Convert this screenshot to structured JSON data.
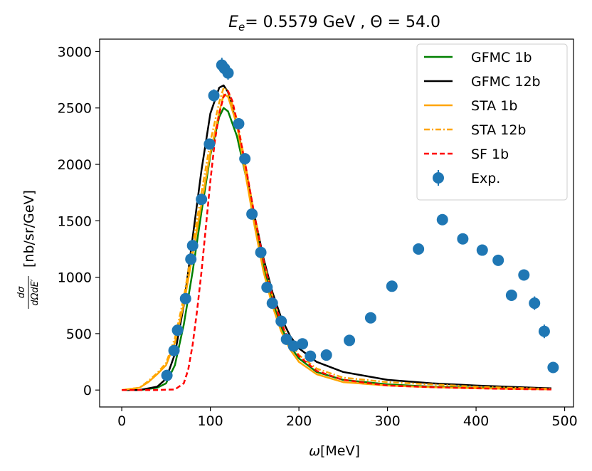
{
  "chart_data": {
    "type": "line",
    "title": {
      "prefix": "E",
      "subscript": "e",
      "rest": "= 0.5579 GeV , Θ = 54.0"
    },
    "xlabel": {
      "symbol": "ω",
      "unit": "[MeV]"
    },
    "ylabel": {
      "fraction_num": "dσ",
      "fraction_den": "dΩdE′",
      "unit": "[nb/sr/GeV]"
    },
    "xlim": [
      -25,
      510
    ],
    "ylim": [
      -150,
      3110
    ],
    "xticks": [
      0,
      100,
      200,
      300,
      400,
      500
    ],
    "yticks": [
      0,
      500,
      1000,
      1500,
      2000,
      2500,
      3000
    ],
    "legend_position": "top-right",
    "series": [
      {
        "name": "GFMC 1b",
        "color": "#008000",
        "dash": "solid",
        "x": [
          0,
          20,
          40,
          50,
          60,
          70,
          80,
          90,
          100,
          110,
          115,
          120,
          130,
          140,
          150,
          160,
          170,
          180,
          190,
          200,
          220,
          250,
          300,
          350,
          400,
          450,
          485
        ],
        "y": [
          0,
          0,
          20,
          60,
          220,
          580,
          1050,
          1580,
          2080,
          2420,
          2500,
          2470,
          2250,
          1900,
          1500,
          1110,
          800,
          560,
          390,
          280,
          160,
          90,
          50,
          30,
          20,
          12,
          8
        ]
      },
      {
        "name": "GFMC 12b",
        "color": "#000000",
        "dash": "solid",
        "x": [
          0,
          20,
          40,
          50,
          60,
          70,
          80,
          90,
          100,
          110,
          115,
          120,
          130,
          140,
          150,
          160,
          170,
          180,
          190,
          200,
          220,
          250,
          300,
          350,
          400,
          450,
          485
        ],
        "y": [
          0,
          0,
          30,
          100,
          320,
          750,
          1350,
          1950,
          2450,
          2680,
          2700,
          2640,
          2350,
          1950,
          1540,
          1170,
          870,
          640,
          480,
          370,
          250,
          160,
          90,
          60,
          40,
          25,
          15
        ]
      },
      {
        "name": "STA 1b",
        "color": "#FFA500",
        "dash": "solid",
        "x": [
          0,
          20,
          30,
          40,
          50,
          60,
          70,
          80,
          90,
          100,
          110,
          115,
          120,
          130,
          140,
          150,
          160,
          170,
          180,
          190,
          200,
          220,
          250,
          300,
          350,
          400,
          450,
          485
        ],
        "y": [
          0,
          20,
          70,
          140,
          220,
          420,
          760,
          1200,
          1650,
          2100,
          2460,
          2620,
          2600,
          2350,
          1900,
          1450,
          1050,
          750,
          520,
          360,
          250,
          140,
          70,
          40,
          25,
          15,
          10,
          6
        ]
      },
      {
        "name": "STA 12b",
        "color": "#FFA500",
        "dash": "dashdot",
        "x": [
          0,
          20,
          30,
          40,
          50,
          60,
          70,
          80,
          90,
          100,
          110,
          115,
          120,
          130,
          140,
          150,
          160,
          170,
          180,
          190,
          200,
          220,
          250,
          300,
          350,
          400,
          450,
          485
        ],
        "y": [
          0,
          20,
          80,
          150,
          240,
          460,
          820,
          1280,
          1750,
          2200,
          2550,
          2680,
          2650,
          2400,
          1980,
          1540,
          1150,
          840,
          600,
          430,
          310,
          190,
          110,
          70,
          50,
          30,
          18,
          10
        ]
      },
      {
        "name": "SF 1b",
        "color": "#FF0000",
        "dash": "dashed",
        "x": [
          0,
          40,
          60,
          70,
          75,
          80,
          85,
          90,
          95,
          100,
          105,
          110,
          115,
          120,
          125,
          130,
          140,
          150,
          160,
          170,
          180,
          190,
          200,
          220,
          250,
          300,
          350,
          400,
          450,
          485
        ],
        "y": [
          0,
          0,
          5,
          60,
          180,
          400,
          700,
          1050,
          1450,
          1850,
          2200,
          2450,
          2600,
          2650,
          2560,
          2380,
          1980,
          1540,
          1150,
          830,
          590,
          420,
          300,
          170,
          90,
          40,
          25,
          15,
          8,
          5
        ]
      }
    ],
    "experiment": {
      "name": "Exp.",
      "color": "#1F77B4",
      "points": [
        {
          "x": 51,
          "y": 130,
          "err": 20
        },
        {
          "x": 59,
          "y": 350,
          "err": 25
        },
        {
          "x": 63,
          "y": 530,
          "err": 25
        },
        {
          "x": 72,
          "y": 810,
          "err": 30
        },
        {
          "x": 78,
          "y": 1160,
          "err": 35
        },
        {
          "x": 80,
          "y": 1280,
          "err": 35
        },
        {
          "x": 90,
          "y": 1690,
          "err": 40
        },
        {
          "x": 99,
          "y": 2180,
          "err": 45
        },
        {
          "x": 104,
          "y": 2610,
          "err": 55
        },
        {
          "x": 113,
          "y": 2880,
          "err": 65
        },
        {
          "x": 116,
          "y": 2850,
          "err": 60
        },
        {
          "x": 120,
          "y": 2810,
          "err": 60
        },
        {
          "x": 132,
          "y": 2360,
          "err": 50
        },
        {
          "x": 139,
          "y": 2050,
          "err": 45
        },
        {
          "x": 147,
          "y": 1560,
          "err": 40
        },
        {
          "x": 157,
          "y": 1220,
          "err": 35
        },
        {
          "x": 164,
          "y": 910,
          "err": 30
        },
        {
          "x": 170,
          "y": 770,
          "err": 30
        },
        {
          "x": 180,
          "y": 610,
          "err": 25
        },
        {
          "x": 186,
          "y": 450,
          "err": 25
        },
        {
          "x": 194,
          "y": 390,
          "err": 20
        },
        {
          "x": 204,
          "y": 410,
          "err": 20
        },
        {
          "x": 213,
          "y": 300,
          "err": 20
        },
        {
          "x": 231,
          "y": 310,
          "err": 20
        },
        {
          "x": 257,
          "y": 440,
          "err": 25
        },
        {
          "x": 281,
          "y": 640,
          "err": 30
        },
        {
          "x": 305,
          "y": 920,
          "err": 35
        },
        {
          "x": 335,
          "y": 1250,
          "err": 35
        },
        {
          "x": 362,
          "y": 1510,
          "err": 40
        },
        {
          "x": 385,
          "y": 1340,
          "err": 35
        },
        {
          "x": 407,
          "y": 1240,
          "err": 35
        },
        {
          "x": 425,
          "y": 1150,
          "err": 35
        },
        {
          "x": 440,
          "y": 840,
          "err": 35
        },
        {
          "x": 454,
          "y": 1020,
          "err": 35
        },
        {
          "x": 466,
          "y": 770,
          "err": 60
        },
        {
          "x": 477,
          "y": 520,
          "err": 60
        },
        {
          "x": 487,
          "y": 200,
          "err": 30
        }
      ]
    }
  }
}
